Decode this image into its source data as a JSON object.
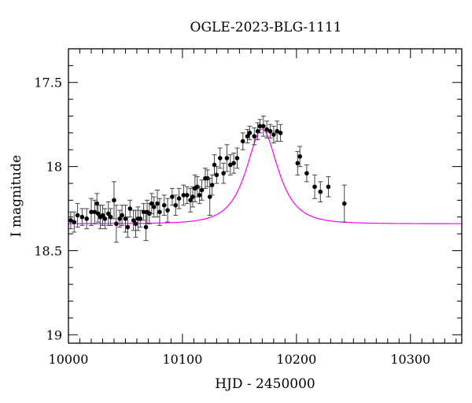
{
  "chart_data": {
    "type": "scatter",
    "title": "OGLE-2023-BLG-1111",
    "xlabel": "HJD - 2450000",
    "ylabel": "I magnitude",
    "xlim": [
      10000,
      10345
    ],
    "ylim": [
      17.3,
      19.05
    ],
    "y_inverted": true,
    "xticks": [
      10000,
      10100,
      10200,
      10300
    ],
    "xtick_labels": [
      "10000",
      "10100",
      "10200",
      "10300"
    ],
    "yticks": [
      17.5,
      18,
      18.5,
      19
    ],
    "ytick_labels": [
      "17.5",
      "18",
      "18.5",
      "19"
    ],
    "grid": false,
    "colors": {
      "points": "#000000",
      "errorbars": "#444444",
      "model": "#ff00ff",
      "axes": "#000000"
    },
    "series": [
      {
        "kind": "points-with-errorbars",
        "points": [
          [
            10002,
            18.32,
            0.05
          ],
          [
            10005,
            18.33,
            0.06
          ],
          [
            10008,
            18.29,
            0.07
          ],
          [
            10012,
            18.3,
            0.05
          ],
          [
            10016,
            18.31,
            0.06
          ],
          [
            10020,
            18.27,
            0.08
          ],
          [
            10023,
            18.27,
            0.07
          ],
          [
            10025,
            18.22,
            0.06
          ],
          [
            10026,
            18.28,
            0.05
          ],
          [
            10028,
            18.3,
            0.07
          ],
          [
            10030,
            18.29,
            0.06
          ],
          [
            10032,
            18.31,
            0.06
          ],
          [
            10035,
            18.28,
            0.07
          ],
          [
            10037,
            18.3,
            0.05
          ],
          [
            10040,
            18.2,
            0.11
          ],
          [
            10042,
            18.34,
            0.11
          ],
          [
            10045,
            18.31,
            0.05
          ],
          [
            10047,
            18.29,
            0.06
          ],
          [
            10050,
            18.31,
            0.08
          ],
          [
            10052,
            18.36,
            0.06
          ],
          [
            10054,
            18.25,
            0.05
          ],
          [
            10057,
            18.32,
            0.06
          ],
          [
            10059,
            18.34,
            0.08
          ],
          [
            10061,
            18.31,
            0.07
          ],
          [
            10063,
            18.31,
            0.05
          ],
          [
            10066,
            18.27,
            0.05
          ],
          [
            10068,
            18.36,
            0.08
          ],
          [
            10069,
            18.27,
            0.07
          ],
          [
            10071,
            18.28,
            0.06
          ],
          [
            10073,
            18.22,
            0.06
          ],
          [
            10075,
            18.24,
            0.06
          ],
          [
            10078,
            18.22,
            0.08
          ],
          [
            10080,
            18.27,
            0.08
          ],
          [
            10084,
            18.23,
            0.06
          ],
          [
            10087,
            18.26,
            0.07
          ],
          [
            10091,
            18.18,
            0.05
          ],
          [
            10094,
            18.23,
            0.06
          ],
          [
            10097,
            18.19,
            0.06
          ],
          [
            10101,
            18.17,
            0.06
          ],
          [
            10104,
            18.17,
            0.05
          ],
          [
            10107,
            18.2,
            0.07
          ],
          [
            10109,
            18.18,
            0.06
          ],
          [
            10111,
            18.13,
            0.08
          ],
          [
            10113,
            18.12,
            0.06
          ],
          [
            10115,
            18.17,
            0.05
          ],
          [
            10117,
            18.14,
            0.06
          ],
          [
            10120,
            18.07,
            0.06
          ],
          [
            10122,
            18.07,
            0.05
          ],
          [
            10124,
            18.18,
            0.11
          ],
          [
            10126,
            18.11,
            0.06
          ],
          [
            10128,
            17.99,
            0.06
          ],
          [
            10130,
            18.05,
            0.05
          ],
          [
            10133,
            17.95,
            0.06
          ],
          [
            10136,
            18.04,
            0.06
          ],
          [
            10139,
            17.95,
            0.08
          ],
          [
            10142,
            17.99,
            0.06
          ],
          [
            10145,
            17.98,
            0.06
          ],
          [
            10148,
            17.95,
            0.06
          ],
          [
            10153,
            17.85,
            0.05
          ],
          [
            10157,
            17.82,
            0.04
          ],
          [
            10159,
            17.8,
            0.04
          ],
          [
            10163,
            17.82,
            0.05
          ],
          [
            10166,
            17.79,
            0.05
          ],
          [
            10168,
            17.76,
            0.04
          ],
          [
            10171,
            17.76,
            0.06
          ],
          [
            10174,
            17.78,
            0.05
          ],
          [
            10177,
            17.79,
            0.04
          ],
          [
            10180,
            17.81,
            0.05
          ],
          [
            10183,
            17.79,
            0.06
          ],
          [
            10186,
            17.8,
            0.05
          ],
          [
            10201,
            17.98,
            0.07
          ],
          [
            10203,
            17.94,
            0.06
          ],
          [
            10209,
            18.04,
            0.05
          ],
          [
            10216,
            18.12,
            0.07
          ],
          [
            10221,
            18.15,
            0.06
          ],
          [
            10228,
            18.12,
            0.06
          ],
          [
            10242,
            18.22,
            0.11
          ]
        ]
      },
      {
        "kind": "model-curve",
        "model": {
          "t0": 10170,
          "tE": 20,
          "u0": 0.7,
          "baseline": 18.34
        }
      }
    ]
  }
}
